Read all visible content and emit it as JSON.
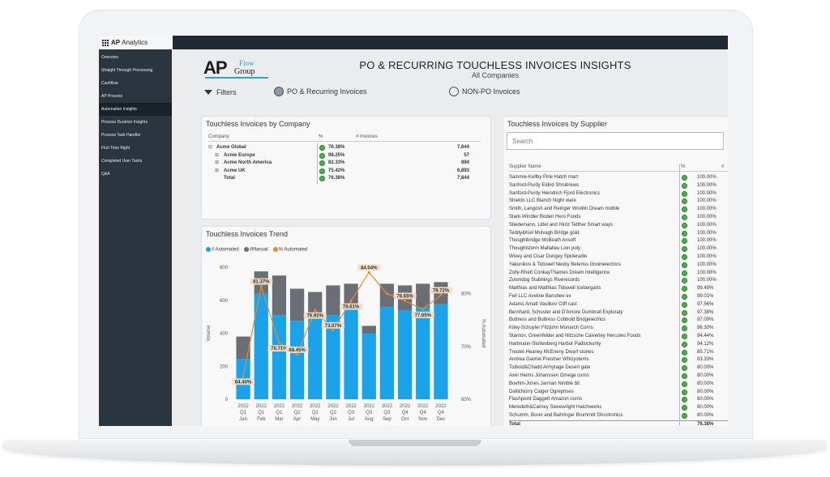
{
  "app": {
    "brand": "AP",
    "name": "Analytics"
  },
  "sidebar": {
    "items": [
      {
        "label": "Overview"
      },
      {
        "label": "Straight Through Processing"
      },
      {
        "label": "Cashflow"
      },
      {
        "label": "AP Process"
      },
      {
        "label": "Automation Insights"
      },
      {
        "label": "Process Duration Insights"
      },
      {
        "label": "Process Task Handler"
      },
      {
        "label": "First Time Right"
      },
      {
        "label": "Completed User Tasks"
      },
      {
        "label": "Q&A"
      }
    ],
    "active": "Automation Insights"
  },
  "logo": {
    "ap": "AP",
    "flow": "Flow",
    "group": "Group"
  },
  "header": {
    "title": "PO & RECURRING TOUCHLESS INVOICES INSIGHTS",
    "subtitle": "All Companies"
  },
  "filters": {
    "label": "Filters",
    "options": [
      {
        "label": "PO & Recurring Invoices",
        "selected": true
      },
      {
        "label": "NON-PO Invoices",
        "selected": false
      }
    ]
  },
  "company_card": {
    "title": "Touchless Invoices by Company",
    "columns": [
      "Company",
      "%",
      "# Invoices"
    ],
    "rows": [
      {
        "expander": "⊟",
        "name": "Acme Global",
        "pct": "76.38%",
        "count": "7,844"
      },
      {
        "expander": "⊞",
        "name": "Acme Europe",
        "pct": "98.25%",
        "count": "57"
      },
      {
        "expander": "⊞",
        "name": "Acme North America",
        "pct": "82.33%",
        "count": "894"
      },
      {
        "expander": "⊞",
        "name": "Acme UK",
        "pct": "75.42%",
        "count": "6,893"
      },
      {
        "expander": "",
        "name": "Total",
        "pct": "76.38%",
        "count": "7,844"
      }
    ],
    "status_color": "#4caf50"
  },
  "trend_card": {
    "title": "Touchless Invoices Trend"
  },
  "chart_data": {
    "type": "bar",
    "title": "",
    "xlabel": "",
    "ylabel": "Volume",
    "y2label": "% Automated",
    "legend": [
      "# Automated",
      "#Manual",
      "% Automated"
    ],
    "legend_colors": [
      "#1aa3e8",
      "#6b6f75",
      "#e88a2a"
    ],
    "categories": [
      [
        "2022",
        "Q1",
        "Jan"
      ],
      [
        "2022",
        "Q1",
        "Feb"
      ],
      [
        "2022",
        "Q1",
        "Mar"
      ],
      [
        "2022",
        "Q2",
        "Apr"
      ],
      [
        "2022",
        "Q2",
        "May"
      ],
      [
        "2022",
        "Q2",
        "Jun"
      ],
      [
        "2022",
        "Q3",
        "Jul"
      ],
      [
        "2022",
        "Q3",
        "Aug"
      ],
      [
        "2022",
        "Q3",
        "Sep"
      ],
      [
        "2022",
        "Q4",
        "Oct"
      ],
      [
        "2022",
        "Q4",
        "Nov"
      ],
      [
        "2022",
        "Q4",
        "Dec"
      ]
    ],
    "series": [
      {
        "name": "# Automated",
        "values": [
          245,
          640,
          510,
          475,
          490,
          510,
          580,
          400,
          560,
          540,
          555,
          575
        ]
      },
      {
        "name": "#Manual",
        "values": [
          135,
          135,
          240,
          195,
          160,
          180,
          120,
          45,
          140,
          150,
          145,
          135
        ]
      },
      {
        "name": "% Automated",
        "values": [
          64.4,
          81.37,
          70.71,
          68.45,
          76.92,
          73.07,
          78.61,
          84.04,
          80.0,
          78.65,
          77.05,
          79.72
        ]
      }
    ],
    "point_labels": [
      "64.40%",
      "81.37%",
      "70.71%",
      "68.45%",
      "76.92%",
      "73.07%",
      "78.61%",
      "84.04%",
      "",
      "78.65%",
      "77.05%",
      "79.72%"
    ],
    "yticks": [
      "800",
      "600",
      "400",
      "200",
      "0"
    ],
    "ylim": [
      0,
      800
    ],
    "y2ticks": [
      "80%",
      "70%",
      "60%"
    ],
    "y2lim": [
      60,
      85
    ]
  },
  "supplier_card": {
    "title": "Touchless Invoices by Supplier",
    "search_placeholder": "Search",
    "columns": [
      "Supplier Name",
      "%",
      "#"
    ],
    "rows": [
      {
        "name": "Sammie-Kellby Pirie Hatch mart",
        "pct": "100.00%"
      },
      {
        "name": "Sanford-Purdy Eldrid Shrubrews",
        "pct": "100.00%"
      },
      {
        "name": "Sanford-Purdy Heindrich Fjord Electronics",
        "pct": "100.00%"
      },
      {
        "name": "Shields LLC Blanch Night ware",
        "pct": "100.00%"
      },
      {
        "name": "Smith, Langosh and Reinger Woollin Dream mobile",
        "pct": "100.00%"
      },
      {
        "name": "Stark-Windler Boden Hero Foods",
        "pct": "100.00%"
      },
      {
        "name": "Stiedemann, Littel and Hintz Tetther Smart ways",
        "pct": "100.00%"
      },
      {
        "name": "Teddy&Kiel Mulvagh Bridge gold",
        "pct": "100.00%"
      },
      {
        "name": "Thoughtbridge McBeath Ansoft",
        "pct": "100.00%"
      },
      {
        "name": "Thoughtstorm Mallalieu Lion poly",
        "pct": "100.00%"
      },
      {
        "name": "Wixey and Cisar Dungey Spideradio",
        "pct": "100.00%"
      },
      {
        "name": "Yakunikov & Tidswell Nesby Beteriss Gnomelectrics",
        "pct": "100.00%"
      },
      {
        "name": "Zolly-Rhett ConkayThames Dream Intelligence",
        "pct": "100.00%"
      },
      {
        "name": "Zoomdog Stubbings Riverecords",
        "pct": "100.00%"
      },
      {
        "name": "Matthias and Matthias Tidswell Icebergarts",
        "pct": "99.49%"
      },
      {
        "name": "Feil LLC Aveline Banshee ex",
        "pct": "99.01%"
      },
      {
        "name": "Adams Amatt Vasilkov Cliff cast",
        "pct": "97.56%"
      },
      {
        "name": "Bernhard, Schuster and D'Amore Dumbrall Exploraty",
        "pct": "97.38%"
      },
      {
        "name": "Buttress and Buttress Cobbold Bridgelectrics",
        "pct": "97.09%"
      },
      {
        "name": "Kiley-Schuyler Fitzjohn Monarch Corns",
        "pct": "96.30%"
      },
      {
        "name": "Stanton, Greenfelder and Nitzsche Calverley Hercules Foods",
        "pct": "94.44%"
      },
      {
        "name": "Hartmann-Stoltenberg Harbor Padlockurity",
        "pct": "94.12%"
      },
      {
        "name": "Treutel-Heaney McEneny Dwarf stones",
        "pct": "85.71%"
      },
      {
        "name": "Andrea Gavriel Prestner Whizystems",
        "pct": "83.33%"
      },
      {
        "name": "Toiboid&Chadd Armytage Desert gate",
        "pct": "80.00%"
      },
      {
        "name": "Axel Heims Johanssen Omega corns",
        "pct": "80.00%"
      },
      {
        "name": "Boehm-Jones Jarman Nimble bit",
        "pct": "80.00%"
      },
      {
        "name": "Dalt&Norry Caiger Ogreprises",
        "pct": "80.00%"
      },
      {
        "name": "Flashpoint Daggett Amazon corns",
        "pct": "80.00%"
      },
      {
        "name": "Meredeth&Carney Sievewright Hatchworks",
        "pct": "80.00%"
      },
      {
        "name": "Schumm, Borer and Bahringer Brummitt Ghostronics",
        "pct": "80.00%"
      }
    ],
    "total": {
      "name": "Total",
      "pct": "76.38%"
    }
  }
}
